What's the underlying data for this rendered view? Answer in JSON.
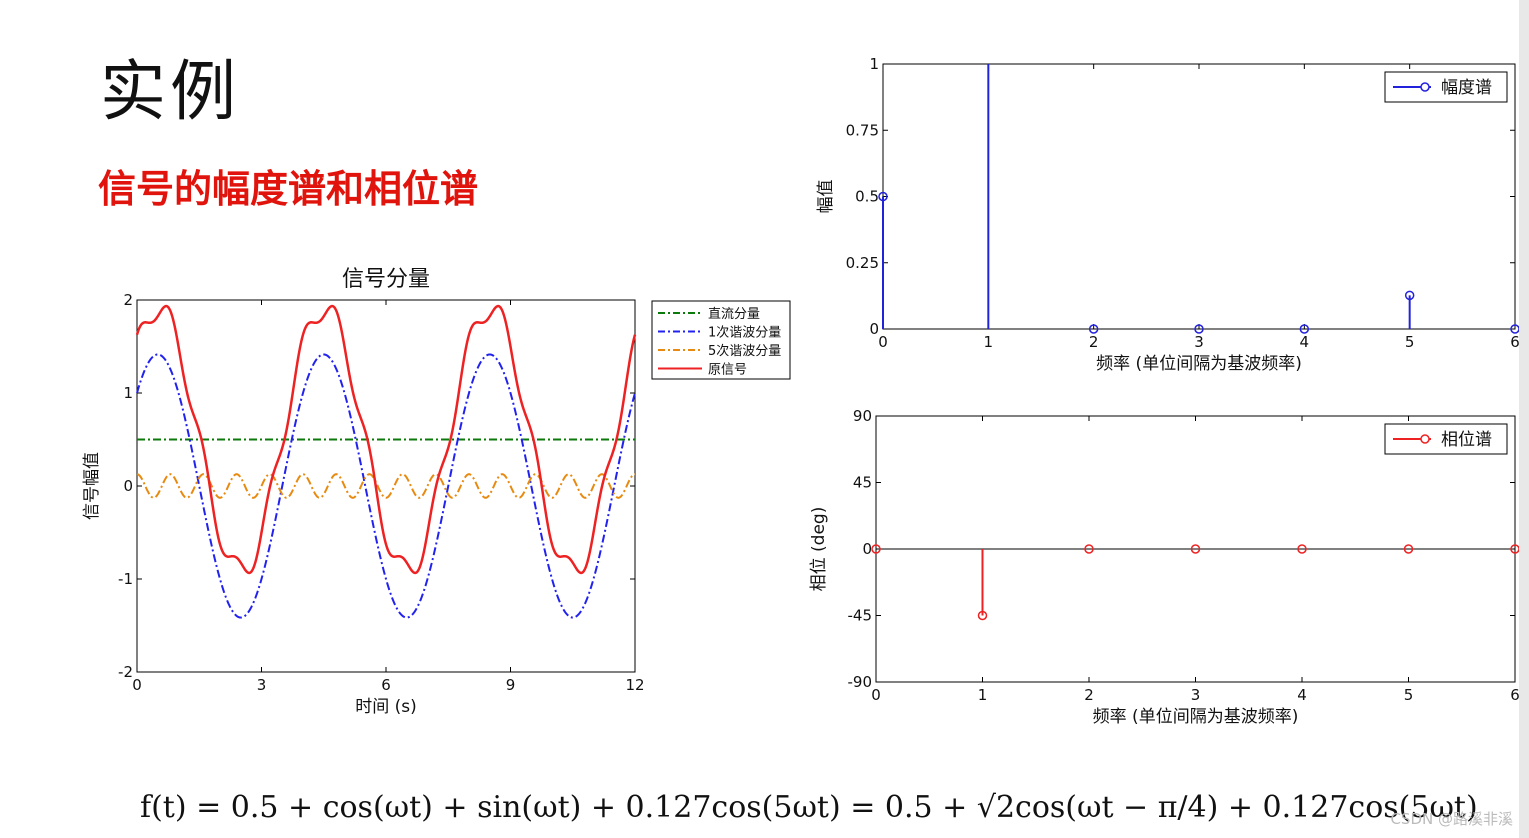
{
  "slide": {
    "title": "实例",
    "subtitle": "信号的幅度谱和相位谱",
    "formula": "f(t) = 0.5 + cos(ωt) + sin(ωt) + 0.127cos(5ωt) = 0.5 + √2cos(ωt − π/4) + 0.127cos(5ωt)",
    "watermark": "CSDN @路溪非溪"
  },
  "chart_data": [
    {
      "id": "signal",
      "type": "line",
      "title": "信号分量",
      "xlabel": "时间 (s)",
      "ylabel": "信号幅值",
      "xlim": [
        0,
        12
      ],
      "ylim": [
        -2,
        2
      ],
      "xticks": [
        0,
        3,
        6,
        9,
        12
      ],
      "yticks": [
        -2,
        -1,
        0,
        1,
        2
      ],
      "legend_position": "top-right-outside",
      "period": 4,
      "series": [
        {
          "name": "直流分量",
          "style": "dash-dot",
          "color": "#0a7a0a",
          "formula": "0.5"
        },
        {
          "name": "1次谐波分量",
          "style": "dash-dot",
          "color": "#2222ee",
          "formula": "√2cos(ωt − π/4)"
        },
        {
          "name": "5次谐波分量",
          "style": "dash-dot",
          "color": "#e88a10",
          "formula": "0.127cos(5ωt)"
        },
        {
          "name": "原信号",
          "style": "solid",
          "color": "#ee2222",
          "formula": "0.5 + √2cos(ωt − π/4) + 0.127cos(5ωt)"
        }
      ]
    },
    {
      "id": "amplitude",
      "type": "stem",
      "xlabel": "频率 (单位间隔为基波频率)",
      "ylabel": "幅值",
      "xlim": [
        0,
        6
      ],
      "ylim": [
        0,
        1
      ],
      "xticks": [
        0,
        1,
        2,
        3,
        4,
        5,
        6
      ],
      "yticks": [
        0,
        0.25,
        0.5,
        0.75,
        1
      ],
      "color": "#2222dd",
      "legend": "幅度谱",
      "legend_position": "top-right",
      "x": [
        0,
        1,
        2,
        3,
        4,
        5,
        6
      ],
      "values": [
        0.5,
        1.414,
        0,
        0,
        0,
        0.127,
        0
      ]
    },
    {
      "id": "phase",
      "type": "stem",
      "xlabel": "频率 (单位间隔为基波频率)",
      "ylabel": "相位 (deg)",
      "xlim": [
        0,
        6
      ],
      "ylim": [
        -90,
        90
      ],
      "xticks": [
        0,
        1,
        2,
        3,
        4,
        5,
        6
      ],
      "yticks": [
        -90,
        -45,
        0,
        45,
        90
      ],
      "color": "#ee2222",
      "legend": "相位谱",
      "legend_position": "top-right",
      "x": [
        0,
        1,
        2,
        3,
        4,
        5,
        6
      ],
      "values": [
        0,
        -45,
        0,
        0,
        0,
        0,
        0
      ]
    }
  ]
}
